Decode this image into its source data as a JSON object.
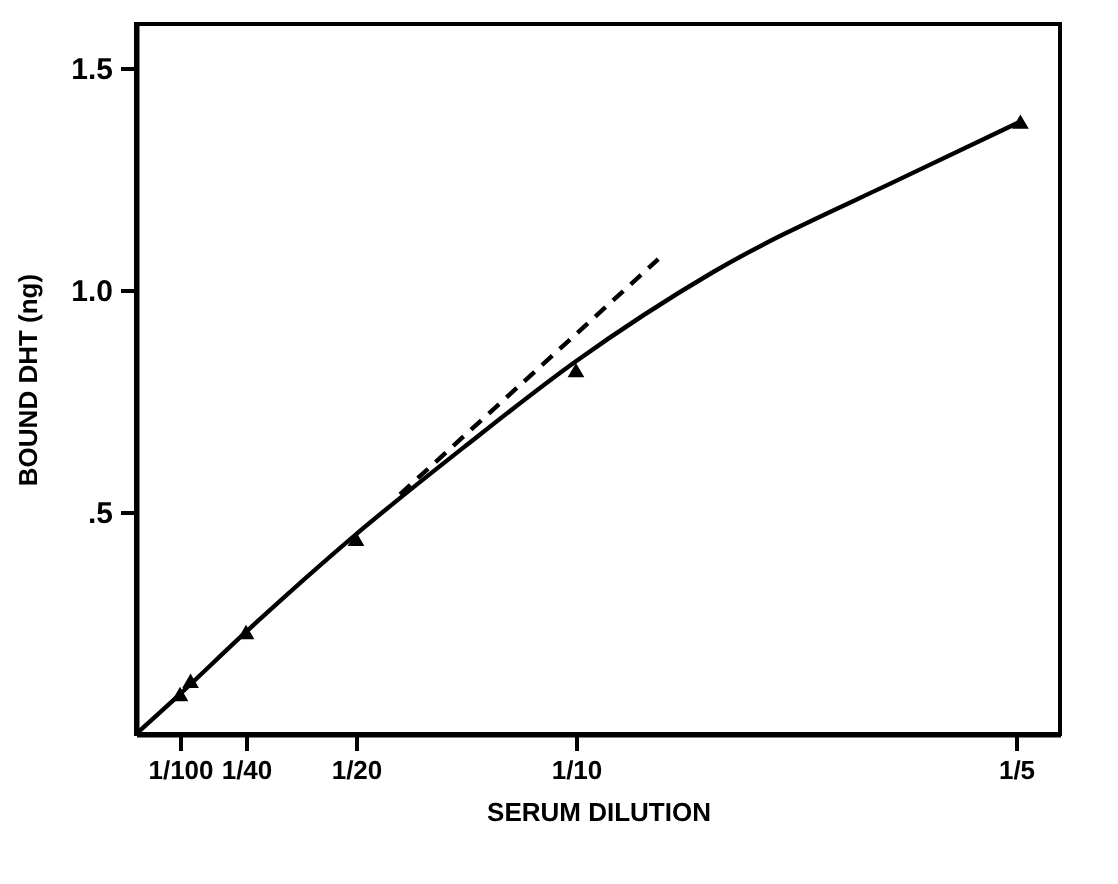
{
  "chart_data": {
    "type": "scatter",
    "xlabel": "SERUM  DILUTION",
    "ylabel": "BOUND  DHT  (ng)",
    "xlim": [
      0,
      0.21
    ],
    "ylim": [
      0,
      1.6
    ],
    "xticks": [
      {
        "value": 0.01,
        "label": "1/100"
      },
      {
        "value": 0.025,
        "label": "1/40"
      },
      {
        "value": 0.05,
        "label": "1/20"
      },
      {
        "value": 0.1,
        "label": "1/10"
      },
      {
        "value": 0.2,
        "label": "1/5"
      }
    ],
    "yticks": [
      {
        "value": 0.5,
        "label": ".5"
      },
      {
        "value": 1.0,
        "label": "1.0"
      },
      {
        "value": 1.5,
        "label": "1.5"
      }
    ],
    "grid": false,
    "series": [
      {
        "type": "line",
        "color": "#000000",
        "marker": "none",
        "line_style": "solid",
        "x": [
          0,
          0.01,
          0.025,
          0.05,
          0.075,
          0.1,
          0.131,
          0.1756,
          0.201
        ],
        "values": [
          0,
          0.09,
          0.23,
          0.45,
          0.65,
          0.84,
          1.04,
          1.26,
          1.38
        ]
      },
      {
        "type": "line",
        "color": "#000000",
        "marker": "none",
        "line_style": "dashed",
        "x": [
          0.06,
          0.1187
        ],
        "values": [
          0.54,
          1.07
        ]
      },
      {
        "color": "#000000",
        "marker": "triangle",
        "x": [
          0.01,
          0.0124,
          0.025,
          0.05,
          0.1,
          0.201
        ],
        "values": [
          0.09,
          0.12,
          0.23,
          0.44,
          0.82,
          1.38
        ]
      }
    ]
  }
}
